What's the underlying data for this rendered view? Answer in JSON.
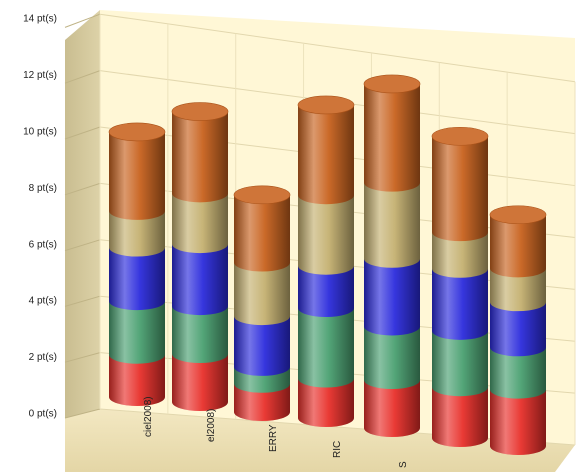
{
  "chart_data": {
    "type": "bar",
    "stacked": true,
    "style": "3d-cylinder",
    "title": "",
    "xlabel": "",
    "ylabel": "",
    "ylim": [
      0,
      14
    ],
    "y_tick_labels": [
      "0 pt(s)",
      "2 pt(s)",
      "4 pt(s)",
      "6 pt(s)",
      "8 pt(s)",
      "10 pt(s)",
      "12 pt(s)",
      "14 pt(s)"
    ],
    "categories": [
      "ciel2008)",
      "el2008)",
      "ERRY",
      "RIC",
      "S",
      "",
      ""
    ],
    "grid": true,
    "legend": "none",
    "series": [
      {
        "color": "#e8302a",
        "values": [
          1.5,
          1.7,
          1.0,
          1.4,
          1.7,
          1.8,
          2.0
        ]
      },
      {
        "color": "#4aa071",
        "values": [
          1.9,
          1.7,
          0.6,
          2.5,
          1.9,
          2.0,
          1.5
        ]
      },
      {
        "color": "#2b2bdc",
        "values": [
          1.9,
          2.2,
          1.8,
          1.5,
          2.4,
          2.2,
          1.6
        ]
      },
      {
        "color": "#c4b070",
        "values": [
          1.3,
          1.8,
          1.9,
          2.5,
          2.7,
          1.3,
          1.2
        ]
      },
      {
        "color": "#c8621e",
        "values": [
          2.8,
          2.9,
          2.4,
          3.2,
          3.5,
          3.4,
          1.9
        ]
      }
    ]
  }
}
